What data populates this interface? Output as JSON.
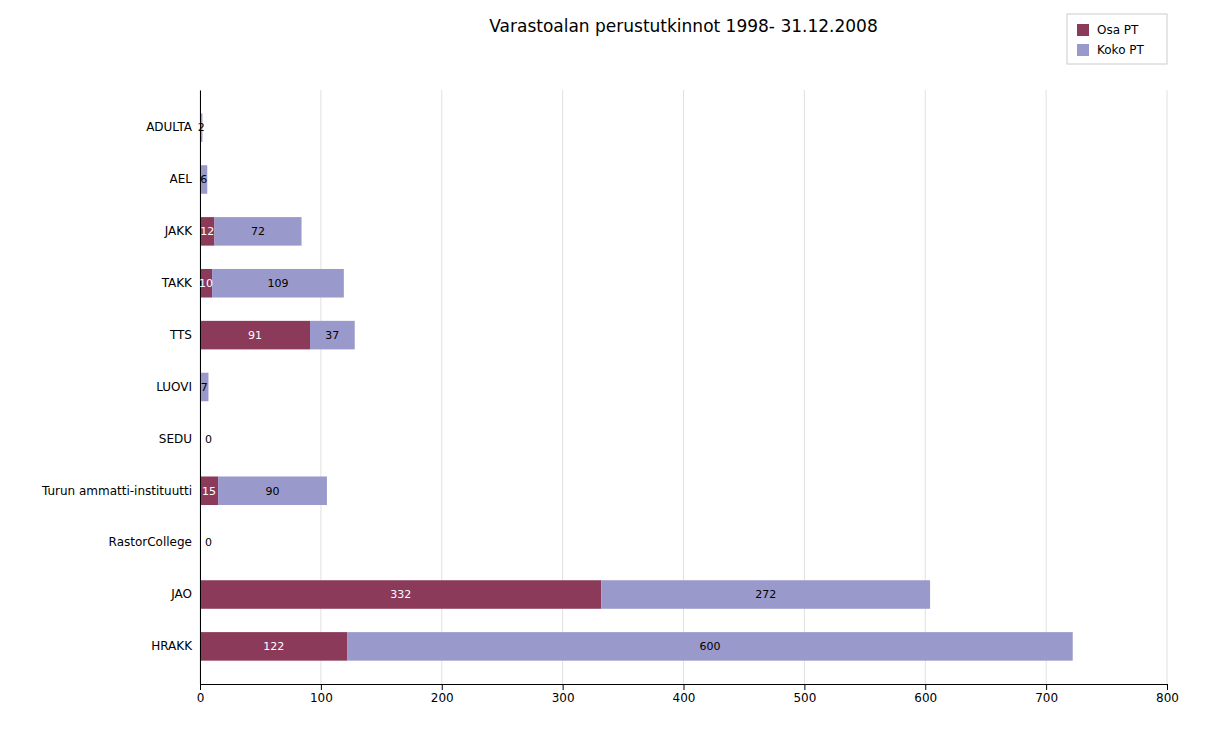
{
  "chart_data": {
    "type": "bar",
    "orientation": "horizontal",
    "stacked": true,
    "title": "Varastoalan perustutkinnot 1998- 31.12.2008",
    "categories": [
      "HRAKK",
      "JAO",
      "RastorCollege",
      "Turun ammatti-instituutti",
      "SEDU",
      "LUOVI",
      "TTS",
      "TAKK",
      "JAKK",
      "AEL",
      "ADULTA"
    ],
    "series": [
      {
        "name": "Osa PT",
        "color": "#8B3A5A",
        "values": [
          122,
          332,
          0,
          15,
          0,
          0,
          91,
          10,
          12,
          0,
          0
        ]
      },
      {
        "name": "Koko PT",
        "color": "#9999CC",
        "values": [
          600,
          272,
          0,
          90,
          0,
          7,
          37,
          109,
          72,
          6,
          2
        ]
      }
    ],
    "xlim": [
      0,
      800
    ],
    "xticks": [
      0,
      100,
      200,
      300,
      400,
      500,
      600,
      700,
      800
    ],
    "grid": true,
    "legend": "upper right",
    "data_labels": true
  }
}
